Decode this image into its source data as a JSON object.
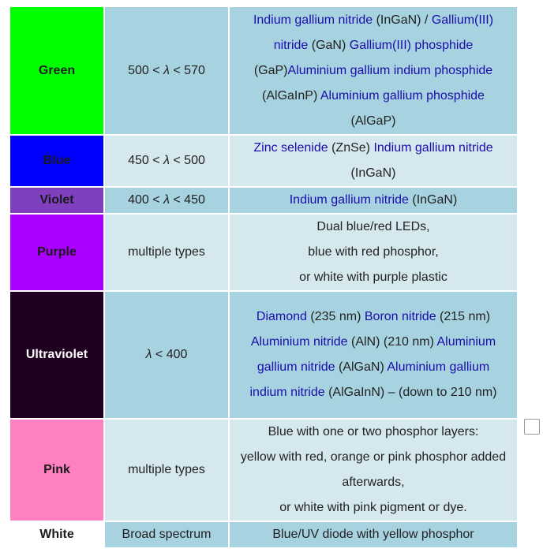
{
  "rows": [
    {
      "color_name": "Green",
      "color_bg": "#00ff00",
      "wavelength_pre": "500 < ",
      "wavelength_symbol": "λ",
      "wavelength_post": " < 570",
      "materials": {
        "p1": "Indium gallium nitride",
        "t1": " (InGaN) / ",
        "p2": "Gallium(III) nitride",
        "t2": " (GaN) ",
        "p3": "Gallium(III) phosphide",
        "t3": " (GaP)",
        "p4": "Aluminium gallium indium phosphide",
        "t4": " (AlGaInP) ",
        "p5": "Aluminium gallium phosphide",
        "t5": " (AlGaP)"
      }
    },
    {
      "color_name": "Blue",
      "color_bg": "#0000ff",
      "wavelength_pre": "450 < ",
      "wavelength_symbol": "λ",
      "wavelength_post": " < 500",
      "materials": {
        "p1": "Zinc selenide",
        "t1": " (ZnSe) ",
        "p2": "Indium gallium nitride",
        "t2": " (InGaN)"
      }
    },
    {
      "color_name": "Violet",
      "color_bg": "#7f3fbf",
      "wavelength_pre": "400 < ",
      "wavelength_symbol": "λ",
      "wavelength_post": " < 450",
      "materials": {
        "p1": "Indium gallium nitride",
        "t1": " (InGaN)"
      }
    },
    {
      "color_name": "Purple",
      "color_bg": "#aa00ff",
      "wavelength": "multiple types",
      "materials": {
        "l1": "Dual blue/red LEDs,",
        "l2": "blue with red phosphor,",
        "l3": "or white with purple plastic"
      }
    },
    {
      "color_name": "Ultraviolet",
      "color_bg": "#200020",
      "wavelength_symbol": "λ",
      "wavelength_post": " < 400",
      "materials": {
        "p1": "Diamond",
        "t1": " (235 nm) ",
        "p2": "Boron nitride",
        "t2": " (215 nm) ",
        "p3": "Aluminium nitride",
        "t3": " (AlN) (210 nm) ",
        "p4": "Aluminium gallium nitride",
        "t4": " (AlGaN) ",
        "p5": "Aluminium gallium indium nitride",
        "t5": " (AlGaInN) – (down to 210 nm)"
      }
    },
    {
      "color_name": "Pink",
      "color_bg": "#ff80c0",
      "wavelength": "multiple types",
      "materials": {
        "l1": "Blue with one or two phosphor layers:",
        "l2": "yellow with red, orange or pink phosphor added afterwards,",
        "l3": "or white with pink pigment or dye."
      }
    },
    {
      "color_name": "White",
      "color_bg": "#ffffff",
      "wavelength": "Broad spectrum",
      "materials": {
        "l1": "Blue/UV diode with yellow phosphor"
      }
    }
  ],
  "colors": {
    "cell_dark": "#a7d2df",
    "cell_light": "#d4e8ee",
    "link": "#1a0dab"
  }
}
